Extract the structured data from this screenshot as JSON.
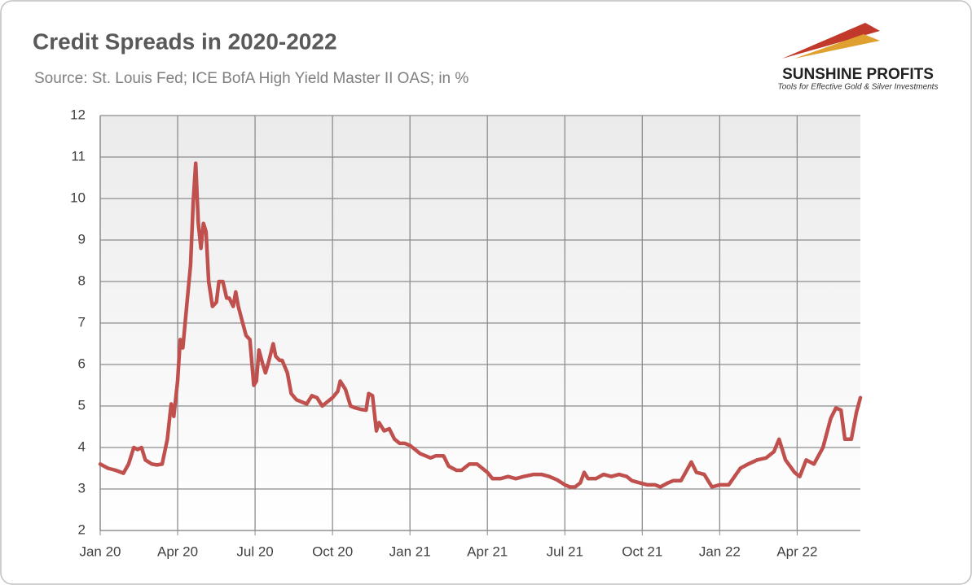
{
  "chart_data": {
    "type": "line",
    "title": "Credit Spreads in 2020-2022",
    "subtitle": "Source: St. Louis Fed; ICE BofA High Yield Master II OAS; in %",
    "logo": {
      "name": "SUNSHINE PROFITS",
      "tagline": "Tools for Effective Gold & Silver Investments"
    },
    "grid": true,
    "xlim": [
      0,
      29.45
    ],
    "xticks": [
      {
        "value": 0,
        "label": "Jan 20"
      },
      {
        "value": 3,
        "label": "Apr 20"
      },
      {
        "value": 6,
        "label": "Jul 20"
      },
      {
        "value": 9,
        "label": "Oct 20"
      },
      {
        "value": 12,
        "label": "Jan 21"
      },
      {
        "value": 15,
        "label": "Apr 21"
      },
      {
        "value": 18,
        "label": "Jul 21"
      },
      {
        "value": 21,
        "label": "Oct 21"
      },
      {
        "value": 24,
        "label": "Jan 22"
      },
      {
        "value": 27,
        "label": "Apr 22"
      }
    ],
    "ylim": [
      2,
      12
    ],
    "yticks": [
      2,
      3,
      4,
      5,
      6,
      7,
      8,
      9,
      10,
      11,
      12
    ],
    "x": [
      0,
      0.3,
      0.6,
      0.9,
      1.1,
      1.3,
      1.45,
      1.6,
      1.75,
      2.0,
      2.2,
      2.4,
      2.6,
      2.75,
      2.85,
      3.0,
      3.1,
      3.2,
      3.35,
      3.5,
      3.6,
      3.7,
      3.8,
      3.9,
      4.0,
      4.1,
      4.2,
      4.35,
      4.5,
      4.6,
      4.75,
      4.9,
      5.0,
      5.15,
      5.25,
      5.35,
      5.5,
      5.65,
      5.8,
      5.95,
      6.05,
      6.15,
      6.3,
      6.4,
      6.5,
      6.7,
      6.8,
      6.95,
      7.05,
      7.25,
      7.4,
      7.6,
      7.8,
      8.0,
      8.2,
      8.4,
      8.6,
      8.8,
      9.0,
      9.2,
      9.3,
      9.5,
      9.7,
      9.9,
      10.1,
      10.3,
      10.4,
      10.55,
      10.7,
      10.8,
      11.0,
      11.2,
      11.4,
      11.6,
      11.8,
      12.0,
      12.2,
      12.4,
      12.6,
      12.8,
      13.0,
      13.3,
      13.5,
      13.8,
      14.0,
      14.3,
      14.6,
      14.8,
      15.0,
      15.2,
      15.5,
      15.8,
      16.1,
      16.4,
      16.8,
      17.1,
      17.4,
      17.7,
      18.0,
      18.2,
      18.4,
      18.6,
      18.75,
      18.9,
      19.2,
      19.5,
      19.8,
      20.1,
      20.4,
      20.6,
      20.9,
      21.2,
      21.5,
      21.7,
      22.0,
      22.2,
      22.5,
      22.9,
      23.1,
      23.4,
      23.7,
      24.0,
      24.35,
      24.8,
      25.1,
      25.45,
      25.8,
      26.1,
      26.3,
      26.55,
      26.9,
      27.1,
      27.35,
      27.65,
      28.0,
      28.3,
      28.5,
      28.7,
      28.85,
      29.1,
      29.3,
      29.45
    ],
    "series": [
      {
        "name": "ICE BofA High Yield Master II OAS",
        "color": "#c0504d",
        "values": [
          3.6,
          3.5,
          3.45,
          3.38,
          3.6,
          4.0,
          3.95,
          4.0,
          3.7,
          3.6,
          3.58,
          3.6,
          4.2,
          5.05,
          4.75,
          5.6,
          6.6,
          6.4,
          7.4,
          8.4,
          9.9,
          10.85,
          9.4,
          8.8,
          9.4,
          9.2,
          8.0,
          7.4,
          7.5,
          8.0,
          8.0,
          7.6,
          7.6,
          7.4,
          7.75,
          7.4,
          7.05,
          6.7,
          6.6,
          5.5,
          5.6,
          6.35,
          6.0,
          5.8,
          6.0,
          6.5,
          6.2,
          6.1,
          6.1,
          5.8,
          5.3,
          5.15,
          5.1,
          5.05,
          5.25,
          5.2,
          5.0,
          5.1,
          5.2,
          5.35,
          5.6,
          5.4,
          5.0,
          4.95,
          4.92,
          4.9,
          5.3,
          5.25,
          4.4,
          4.6,
          4.4,
          4.45,
          4.2,
          4.1,
          4.1,
          4.05,
          3.95,
          3.85,
          3.8,
          3.75,
          3.8,
          3.8,
          3.55,
          3.45,
          3.45,
          3.6,
          3.6,
          3.5,
          3.4,
          3.25,
          3.25,
          3.3,
          3.25,
          3.3,
          3.35,
          3.35,
          3.3,
          3.22,
          3.1,
          3.05,
          3.05,
          3.15,
          3.4,
          3.25,
          3.25,
          3.35,
          3.3,
          3.35,
          3.3,
          3.2,
          3.15,
          3.1,
          3.1,
          3.05,
          3.15,
          3.2,
          3.2,
          3.65,
          3.4,
          3.35,
          3.05,
          3.1,
          3.1,
          3.5,
          3.6,
          3.7,
          3.75,
          3.9,
          4.2,
          3.7,
          3.4,
          3.3,
          3.7,
          3.6,
          4.0,
          4.7,
          4.95,
          4.9,
          4.2,
          4.2,
          4.85,
          5.2
        ]
      }
    ]
  }
}
